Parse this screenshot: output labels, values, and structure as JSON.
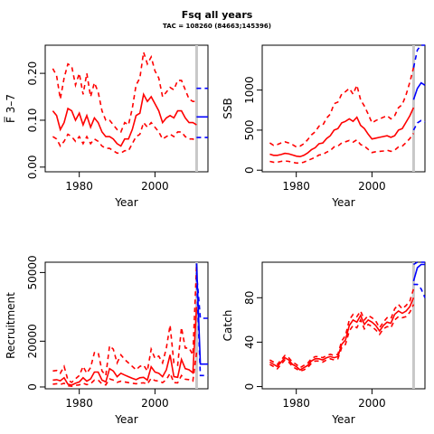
{
  "figure": {
    "title": "Fsq all years",
    "subtitle": "TAC = 108260 (84663;145396)"
  },
  "colors": {
    "history": "#ff0000",
    "projection": "#0000ff",
    "current_year_line": "#c8c8c8"
  },
  "chart_data": [
    {
      "type": "line",
      "panel": "F",
      "xlabel": "Year",
      "ylabel": "F̅ 3–7",
      "xlim": [
        1971,
        2014
      ],
      "ylim": [
        -0.01,
        0.26
      ],
      "xticks": [
        1980,
        2000
      ],
      "yticks": [
        0.0,
        0.1,
        0.2
      ],
      "ytick_labels": [
        "0.00",
        "0.10",
        "0.20"
      ],
      "x": [
        1973,
        1974,
        1975,
        1976,
        1977,
        1978,
        1979,
        1980,
        1981,
        1982,
        1983,
        1984,
        1985,
        1986,
        1987,
        1988,
        1989,
        1990,
        1991,
        1992,
        1993,
        1994,
        1995,
        1996,
        1997,
        1998,
        1999,
        2000,
        2001,
        2002,
        2003,
        2004,
        2005,
        2006,
        2007,
        2008,
        2009,
        2010,
        2011
      ],
      "series": [
        {
          "role": "median",
          "values": [
            0.12,
            0.11,
            0.08,
            0.095,
            0.125,
            0.12,
            0.1,
            0.115,
            0.09,
            0.11,
            0.085,
            0.105,
            0.095,
            0.075,
            0.065,
            0.065,
            0.06,
            0.05,
            0.045,
            0.06,
            0.06,
            0.08,
            0.11,
            0.115,
            0.155,
            0.14,
            0.15,
            0.135,
            0.12,
            0.095,
            0.105,
            0.11,
            0.105,
            0.12,
            0.12,
            0.105,
            0.095,
            0.095,
            0.09
          ]
        },
        {
          "role": "upper",
          "values": [
            0.21,
            0.195,
            0.145,
            0.19,
            0.22,
            0.215,
            0.175,
            0.2,
            0.155,
            0.2,
            0.15,
            0.18,
            0.16,
            0.12,
            0.1,
            0.1,
            0.09,
            0.08,
            0.075,
            0.095,
            0.09,
            0.125,
            0.175,
            0.19,
            0.245,
            0.22,
            0.235,
            0.205,
            0.19,
            0.15,
            0.16,
            0.17,
            0.165,
            0.185,
            0.185,
            0.165,
            0.145,
            0.14,
            0.14
          ]
        },
        {
          "role": "lower",
          "values": [
            0.065,
            0.06,
            0.045,
            0.055,
            0.07,
            0.065,
            0.055,
            0.065,
            0.05,
            0.065,
            0.05,
            0.06,
            0.055,
            0.045,
            0.04,
            0.04,
            0.035,
            0.03,
            0.03,
            0.035,
            0.035,
            0.05,
            0.065,
            0.07,
            0.095,
            0.085,
            0.095,
            0.085,
            0.075,
            0.06,
            0.065,
            0.07,
            0.065,
            0.075,
            0.075,
            0.065,
            0.06,
            0.06,
            0.055
          ]
        }
      ],
      "projection": {
        "x": [
          2011,
          2014
        ],
        "median": [
          0.107,
          0.107
        ],
        "upper": [
          0.168,
          0.168
        ],
        "lower": [
          0.063,
          0.063
        ]
      },
      "current_year": 2011
    },
    {
      "type": "line",
      "panel": "SSB",
      "xlabel": "Year",
      "ylabel": "SSB",
      "xlim": [
        1971,
        2014
      ],
      "ylim": [
        -20,
        1560
      ],
      "xticks": [
        1980,
        2000
      ],
      "yticks": [
        0,
        500,
        1000
      ],
      "ytick_labels": [
        "0",
        "500",
        "1000"
      ],
      "x": [
        1973,
        1974,
        1975,
        1976,
        1977,
        1978,
        1979,
        1980,
        1981,
        1982,
        1983,
        1984,
        1985,
        1986,
        1987,
        1988,
        1989,
        1990,
        1991,
        1992,
        1993,
        1994,
        1995,
        1996,
        1997,
        1998,
        1999,
        2000,
        2001,
        2002,
        2003,
        2004,
        2005,
        2006,
        2007,
        2008,
        2009,
        2010,
        2011
      ],
      "series": [
        {
          "role": "median",
          "values": [
            200,
            185,
            185,
            195,
            210,
            205,
            190,
            175,
            170,
            185,
            215,
            255,
            280,
            330,
            340,
            395,
            430,
            500,
            520,
            590,
            610,
            640,
            610,
            660,
            560,
            520,
            450,
            390,
            400,
            410,
            420,
            430,
            410,
            430,
            500,
            520,
            600,
            680,
            780
          ]
        },
        {
          "role": "upper",
          "values": [
            340,
            310,
            320,
            340,
            355,
            340,
            320,
            290,
            300,
            330,
            380,
            440,
            480,
            550,
            560,
            650,
            700,
            830,
            850,
            950,
            980,
            1020,
            950,
            1060,
            880,
            800,
            700,
            590,
            620,
            640,
            660,
            680,
            640,
            680,
            780,
            820,
            940,
            1100,
            1280
          ]
        },
        {
          "role": "lower",
          "values": [
            110,
            100,
            100,
            110,
            115,
            110,
            100,
            90,
            90,
            100,
            120,
            140,
            160,
            190,
            195,
            225,
            245,
            290,
            300,
            340,
            355,
            370,
            350,
            380,
            320,
            300,
            260,
            220,
            230,
            235,
            240,
            250,
            235,
            250,
            290,
            300,
            345,
            395,
            460
          ]
        }
      ],
      "projection": {
        "x": [
          2011,
          2012,
          2013,
          2014
        ],
        "median": [
          880,
          1020,
          1090,
          1060
        ],
        "upper": [
          1280,
          1500,
          1560,
          1560
        ],
        "lower": [
          500,
          590,
          620,
          600
        ]
      },
      "current_year": 2011
    },
    {
      "type": "line",
      "panel": "Recruitment",
      "xlabel": "Year",
      "ylabel": "Recruitment",
      "xlim": [
        1971,
        2014
      ],
      "ylim": [
        -800,
        54500
      ],
      "xticks": [
        1980,
        2000
      ],
      "yticks": [
        0,
        20000,
        50000
      ],
      "ytick_labels": [
        "0",
        "20000",
        "50000"
      ],
      "x": [
        1973,
        1974,
        1975,
        1976,
        1977,
        1978,
        1979,
        1980,
        1981,
        1982,
        1983,
        1984,
        1985,
        1986,
        1987,
        1988,
        1989,
        1990,
        1991,
        1992,
        1993,
        1994,
        1995,
        1996,
        1997,
        1998,
        1999,
        2000,
        2001,
        2002,
        2003,
        2004,
        2005,
        2006,
        2007,
        2008,
        2009,
        2010,
        2011
      ],
      "series": [
        {
          "role": "median",
          "values": [
            3000,
            3200,
            2700,
            4000,
            1200,
            800,
            1600,
            2200,
            4000,
            2500,
            3500,
            6500,
            6500,
            3000,
            2200,
            8000,
            7000,
            4500,
            6000,
            5200,
            4500,
            3800,
            3200,
            4000,
            4200,
            3000,
            8800,
            6500,
            6000,
            4500,
            7500,
            14000,
            4500,
            4200,
            12000,
            8000,
            7500,
            6200,
            35000
          ]
        },
        {
          "role": "upper",
          "values": [
            7000,
            7200,
            6000,
            9000,
            3000,
            2000,
            3600,
            5000,
            9000,
            6000,
            8500,
            15000,
            15000,
            7000,
            5000,
            18000,
            16500,
            10500,
            14000,
            12000,
            10500,
            9000,
            7500,
            9000,
            9500,
            7000,
            16500,
            12500,
            13500,
            10500,
            17000,
            27000,
            10500,
            9500,
            26000,
            17000,
            17000,
            14000,
            53000
          ]
        },
        {
          "role": "lower",
          "values": [
            1200,
            1400,
            1100,
            1600,
            500,
            300,
            700,
            900,
            1600,
            1000,
            1400,
            3000,
            3000,
            1300,
            900,
            3500,
            3000,
            2000,
            2500,
            2200,
            1900,
            1600,
            1400,
            1700,
            1800,
            1300,
            3800,
            2800,
            2600,
            1900,
            3200,
            6000,
            1900,
            1800,
            5000,
            3400,
            3200,
            2600,
            15000
          ]
        }
      ],
      "projection": {
        "x": [
          2011,
          2012,
          2013,
          2014
        ],
        "median": [
          54000,
          10000,
          10000,
          10000
        ],
        "upper": [
          50000,
          30000,
          30000,
          30000
        ],
        "lower": [
          48000,
          5000,
          5000,
          5000
        ]
      },
      "current_year": 2011
    },
    {
      "type": "line",
      "panel": "Catch",
      "xlabel": "Year",
      "ylabel": "Catch",
      "xlim": [
        1971,
        2014
      ],
      "ylim": [
        -2,
        112
      ],
      "xticks": [
        1980,
        2000
      ],
      "yticks": [
        0,
        40,
        80
      ],
      "ytick_labels": [
        "0",
        "40",
        "80"
      ],
      "x": [
        1973,
        1974,
        1975,
        1976,
        1977,
        1978,
        1979,
        1980,
        1981,
        1982,
        1983,
        1984,
        1985,
        1986,
        1987,
        1988,
        1989,
        1990,
        1991,
        1992,
        1993,
        1994,
        1995,
        1996,
        1997,
        1998,
        1999,
        2000,
        2001,
        2002,
        2003,
        2004,
        2005,
        2006,
        2007,
        2008,
        2009,
        2010,
        2011
      ],
      "series": [
        {
          "role": "median",
          "values": [
            22,
            20,
            18,
            22,
            26,
            24,
            20,
            18,
            15,
            17,
            19,
            23,
            25,
            25,
            24,
            26,
            27,
            26,
            27,
            38,
            42,
            55,
            60,
            58,
            64,
            56,
            60,
            58,
            55,
            50,
            55,
            58,
            57,
            65,
            68,
            66,
            68,
            72,
            80
          ]
        },
        {
          "role": "upper",
          "values": [
            24,
            22,
            20,
            24,
            28,
            26,
            22,
            20,
            17,
            19,
            21,
            25,
            27,
            27,
            26,
            28,
            29,
            28,
            29,
            41,
            46,
            60,
            65,
            63,
            68,
            60,
            64,
            62,
            59,
            53,
            58,
            62,
            61,
            70,
            74,
            70,
            73,
            77,
            88
          ]
        },
        {
          "role": "lower",
          "values": [
            20,
            18,
            16,
            20,
            24,
            22,
            18,
            16,
            14,
            15,
            17,
            21,
            23,
            23,
            22,
            24,
            25,
            24,
            25,
            35,
            38,
            50,
            55,
            53,
            60,
            52,
            56,
            54,
            51,
            47,
            52,
            54,
            53,
            60,
            63,
            62,
            63,
            67,
            74
          ]
        }
      ],
      "projection": {
        "x": [
          2011,
          2012,
          2013,
          2014
        ],
        "median": [
          95,
          107,
          110,
          110
        ],
        "upper": [
          110,
          112,
          112,
          112
        ],
        "lower": [
          92,
          92,
          88,
          80
        ]
      },
      "current_year": 2011
    }
  ]
}
